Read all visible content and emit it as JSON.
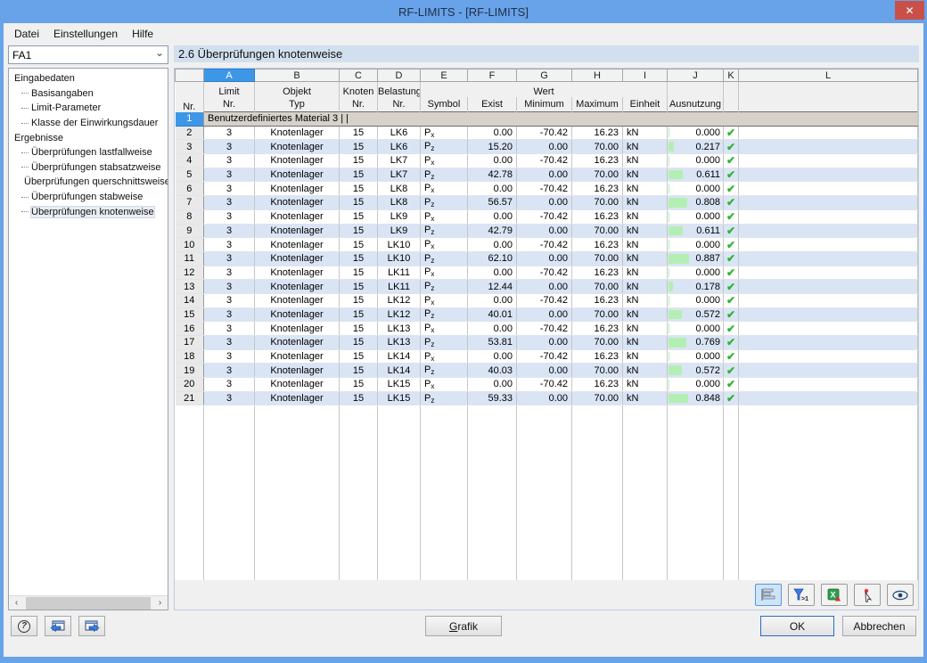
{
  "titlebar": {
    "title": "RF-LIMITS - [RF-LIMITS]"
  },
  "icons": {
    "close": "✕",
    "chevron_down": "⌄",
    "scroll_left": "‹",
    "scroll_right": "›",
    "check": "✔",
    "help": "?"
  },
  "menu": {
    "items": [
      "Datei",
      "Einstellungen",
      "Hilfe"
    ]
  },
  "sidebar": {
    "case_selector": "FA1",
    "tree": [
      {
        "label": "Eingabedaten",
        "level": 0,
        "selected": false
      },
      {
        "label": "Basisangaben",
        "level": 1,
        "selected": false
      },
      {
        "label": "Limit-Parameter",
        "level": 1,
        "selected": false
      },
      {
        "label": "Klasse der Einwirkungsdauer",
        "level": 1,
        "selected": false
      },
      {
        "label": "Ergebnisse",
        "level": 0,
        "selected": false
      },
      {
        "label": "Überprüfungen lastfallweise",
        "level": 1,
        "selected": false
      },
      {
        "label": "Überprüfungen stabsatzweise",
        "level": 1,
        "selected": false
      },
      {
        "label": "Überprüfungen querschnittsweise",
        "level": 1,
        "selected": false
      },
      {
        "label": "Überprüfungen stabweise",
        "level": 1,
        "selected": false
      },
      {
        "label": "Überprüfungen knotenweise",
        "level": 1,
        "selected": true
      }
    ]
  },
  "main": {
    "section_title": "2.6 Überprüfungen knotenweise",
    "table": {
      "letters": [
        "A",
        "B",
        "C",
        "D",
        "E",
        "F",
        "G",
        "H",
        "I",
        "J",
        "K",
        "L"
      ],
      "header": {
        "nr": "Nr.",
        "a_top": "Limit",
        "a_bot": "Nr.",
        "b_top": "Objekt",
        "b_bot": "Typ",
        "c_top": "Knoten",
        "c_bot": "Nr.",
        "d_top": "Belastung",
        "d_bot": "Nr.",
        "wert_group": "Wert",
        "e": "Symbol",
        "f": "Exist",
        "g": "Minimum",
        "h": "Maximum",
        "i": "Einheit",
        "j": "Ausnutzung"
      },
      "group_row": {
        "nr": "1",
        "label": "Benutzerdefiniertes Material 3 | |"
      },
      "rows": [
        {
          "nr": "2",
          "limit": "3",
          "objekt": "Knotenlager",
          "knoten": "15",
          "belastung": "LK6",
          "sym_base": "P",
          "sym_sub": "x",
          "exist": "0.00",
          "min": "-70.42",
          "max": "16.23",
          "einheit": "kN",
          "ausnutzung": "0.000",
          "ok": true
        },
        {
          "nr": "3",
          "limit": "3",
          "objekt": "Knotenlager",
          "knoten": "15",
          "belastung": "LK6",
          "sym_base": "P",
          "sym_sub": "z",
          "exist": "15.20",
          "min": "0.00",
          "max": "70.00",
          "einheit": "kN",
          "ausnutzung": "0.217",
          "ok": true
        },
        {
          "nr": "4",
          "limit": "3",
          "objekt": "Knotenlager",
          "knoten": "15",
          "belastung": "LK7",
          "sym_base": "P",
          "sym_sub": "x",
          "exist": "0.00",
          "min": "-70.42",
          "max": "16.23",
          "einheit": "kN",
          "ausnutzung": "0.000",
          "ok": true
        },
        {
          "nr": "5",
          "limit": "3",
          "objekt": "Knotenlager",
          "knoten": "15",
          "belastung": "LK7",
          "sym_base": "P",
          "sym_sub": "z",
          "exist": "42.78",
          "min": "0.00",
          "max": "70.00",
          "einheit": "kN",
          "ausnutzung": "0.611",
          "ok": true
        },
        {
          "nr": "6",
          "limit": "3",
          "objekt": "Knotenlager",
          "knoten": "15",
          "belastung": "LK8",
          "sym_base": "P",
          "sym_sub": "x",
          "exist": "0.00",
          "min": "-70.42",
          "max": "16.23",
          "einheit": "kN",
          "ausnutzung": "0.000",
          "ok": true
        },
        {
          "nr": "7",
          "limit": "3",
          "objekt": "Knotenlager",
          "knoten": "15",
          "belastung": "LK8",
          "sym_base": "P",
          "sym_sub": "z",
          "exist": "56.57",
          "min": "0.00",
          "max": "70.00",
          "einheit": "kN",
          "ausnutzung": "0.808",
          "ok": true
        },
        {
          "nr": "8",
          "limit": "3",
          "objekt": "Knotenlager",
          "knoten": "15",
          "belastung": "LK9",
          "sym_base": "P",
          "sym_sub": "x",
          "exist": "0.00",
          "min": "-70.42",
          "max": "16.23",
          "einheit": "kN",
          "ausnutzung": "0.000",
          "ok": true
        },
        {
          "nr": "9",
          "limit": "3",
          "objekt": "Knotenlager",
          "knoten": "15",
          "belastung": "LK9",
          "sym_base": "P",
          "sym_sub": "z",
          "exist": "42.79",
          "min": "0.00",
          "max": "70.00",
          "einheit": "kN",
          "ausnutzung": "0.611",
          "ok": true
        },
        {
          "nr": "10",
          "limit": "3",
          "objekt": "Knotenlager",
          "knoten": "15",
          "belastung": "LK10",
          "sym_base": "P",
          "sym_sub": "x",
          "exist": "0.00",
          "min": "-70.42",
          "max": "16.23",
          "einheit": "kN",
          "ausnutzung": "0.000",
          "ok": true
        },
        {
          "nr": "11",
          "limit": "3",
          "objekt": "Knotenlager",
          "knoten": "15",
          "belastung": "LK10",
          "sym_base": "P",
          "sym_sub": "z",
          "exist": "62.10",
          "min": "0.00",
          "max": "70.00",
          "einheit": "kN",
          "ausnutzung": "0.887",
          "ok": true
        },
        {
          "nr": "12",
          "limit": "3",
          "objekt": "Knotenlager",
          "knoten": "15",
          "belastung": "LK11",
          "sym_base": "P",
          "sym_sub": "x",
          "exist": "0.00",
          "min": "-70.42",
          "max": "16.23",
          "einheit": "kN",
          "ausnutzung": "0.000",
          "ok": true
        },
        {
          "nr": "13",
          "limit": "3",
          "objekt": "Knotenlager",
          "knoten": "15",
          "belastung": "LK11",
          "sym_base": "P",
          "sym_sub": "z",
          "exist": "12.44",
          "min": "0.00",
          "max": "70.00",
          "einheit": "kN",
          "ausnutzung": "0.178",
          "ok": true
        },
        {
          "nr": "14",
          "limit": "3",
          "objekt": "Knotenlager",
          "knoten": "15",
          "belastung": "LK12",
          "sym_base": "P",
          "sym_sub": "x",
          "exist": "0.00",
          "min": "-70.42",
          "max": "16.23",
          "einheit": "kN",
          "ausnutzung": "0.000",
          "ok": true
        },
        {
          "nr": "15",
          "limit": "3",
          "objekt": "Knotenlager",
          "knoten": "15",
          "belastung": "LK12",
          "sym_base": "P",
          "sym_sub": "z",
          "exist": "40.01",
          "min": "0.00",
          "max": "70.00",
          "einheit": "kN",
          "ausnutzung": "0.572",
          "ok": true
        },
        {
          "nr": "16",
          "limit": "3",
          "objekt": "Knotenlager",
          "knoten": "15",
          "belastung": "LK13",
          "sym_base": "P",
          "sym_sub": "x",
          "exist": "0.00",
          "min": "-70.42",
          "max": "16.23",
          "einheit": "kN",
          "ausnutzung": "0.000",
          "ok": true
        },
        {
          "nr": "17",
          "limit": "3",
          "objekt": "Knotenlager",
          "knoten": "15",
          "belastung": "LK13",
          "sym_base": "P",
          "sym_sub": "z",
          "exist": "53.81",
          "min": "0.00",
          "max": "70.00",
          "einheit": "kN",
          "ausnutzung": "0.769",
          "ok": true
        },
        {
          "nr": "18",
          "limit": "3",
          "objekt": "Knotenlager",
          "knoten": "15",
          "belastung": "LK14",
          "sym_base": "P",
          "sym_sub": "x",
          "exist": "0.00",
          "min": "-70.42",
          "max": "16.23",
          "einheit": "kN",
          "ausnutzung": "0.000",
          "ok": true
        },
        {
          "nr": "19",
          "limit": "3",
          "objekt": "Knotenlager",
          "knoten": "15",
          "belastung": "LK14",
          "sym_base": "P",
          "sym_sub": "z",
          "exist": "40.03",
          "min": "0.00",
          "max": "70.00",
          "einheit": "kN",
          "ausnutzung": "0.572",
          "ok": true
        },
        {
          "nr": "20",
          "limit": "3",
          "objekt": "Knotenlager",
          "knoten": "15",
          "belastung": "LK15",
          "sym_base": "P",
          "sym_sub": "x",
          "exist": "0.00",
          "min": "-70.42",
          "max": "16.23",
          "einheit": "kN",
          "ausnutzung": "0.000",
          "ok": true
        },
        {
          "nr": "21",
          "limit": "3",
          "objekt": "Knotenlager",
          "knoten": "15",
          "belastung": "LK15",
          "sym_base": "P",
          "sym_sub": "z",
          "exist": "59.33",
          "min": "0.00",
          "max": "70.00",
          "einheit": "kN",
          "ausnutzung": "0.848",
          "ok": true
        }
      ]
    },
    "toolbar": {
      "filter_badge": ">1"
    }
  },
  "footer": {
    "grafik": "Grafik",
    "ok": "OK",
    "cancel": "Abbrechen"
  }
}
